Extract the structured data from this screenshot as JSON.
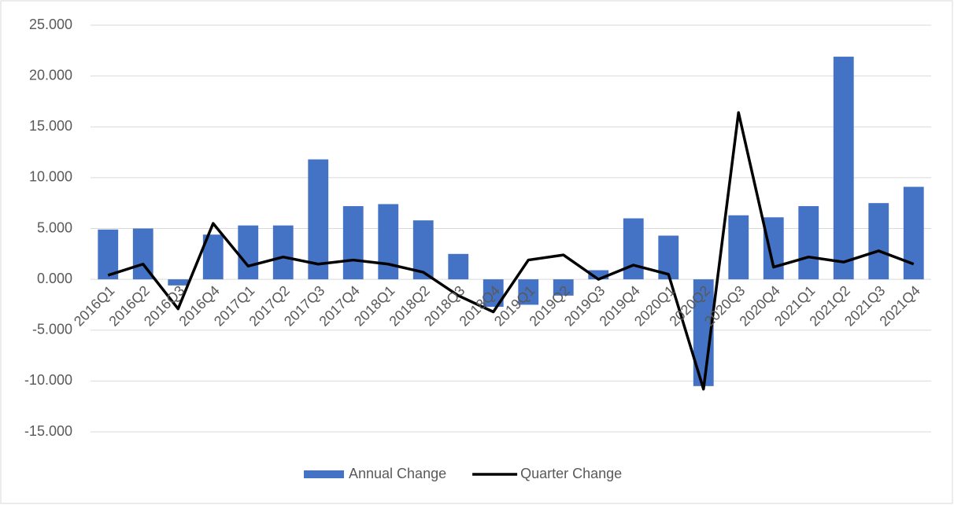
{
  "chart_data": {
    "type": "bar",
    "categories": [
      "2016Q1",
      "2016Q2",
      "2016Q3",
      "2016Q4",
      "2017Q1",
      "2017Q2",
      "2017Q3",
      "2017Q4",
      "2018Q1",
      "2018Q2",
      "2018Q3",
      "2018Q4",
      "2019Q1",
      "2019Q2",
      "2019Q3",
      "2019Q4",
      "2020Q1",
      "2020Q2",
      "2020Q3",
      "2020Q4",
      "2021Q1",
      "2021Q2",
      "2021Q3",
      "2021Q4"
    ],
    "series": [
      {
        "name": "Annual Change",
        "type": "bar",
        "color": "#4472c4",
        "values": [
          4.9,
          5.0,
          -0.6,
          4.4,
          5.3,
          5.3,
          11.8,
          7.2,
          7.4,
          5.8,
          2.5,
          -2.7,
          -2.5,
          -1.6,
          0.9,
          6.0,
          4.3,
          -10.5,
          6.3,
          6.1,
          7.2,
          21.9,
          7.5,
          9.1
        ]
      },
      {
        "name": "Quarter Change",
        "type": "line",
        "color": "#000000",
        "values": [
          0.4,
          1.5,
          -2.9,
          5.5,
          1.3,
          2.2,
          1.5,
          1.9,
          1.5,
          0.7,
          -1.6,
          -3.2,
          1.9,
          2.4,
          0.0,
          1.4,
          0.5,
          -10.8,
          16.4,
          1.2,
          2.2,
          1.7,
          2.8,
          1.5
        ]
      }
    ],
    "ylim": [
      -15,
      25
    ],
    "yticks": [
      {
        "value": -15,
        "label": "-15.000"
      },
      {
        "value": -10,
        "label": "-10.000"
      },
      {
        "value": -5,
        "label": "-5.000"
      },
      {
        "value": 0,
        "label": "0.000"
      },
      {
        "value": 5,
        "label": "5.000"
      },
      {
        "value": 10,
        "label": "10.000"
      },
      {
        "value": 15,
        "label": "15.000"
      },
      {
        "value": 20,
        "label": "20.000"
      },
      {
        "value": 25,
        "label": "25.000"
      }
    ],
    "grid": true,
    "legend": "bottom"
  }
}
